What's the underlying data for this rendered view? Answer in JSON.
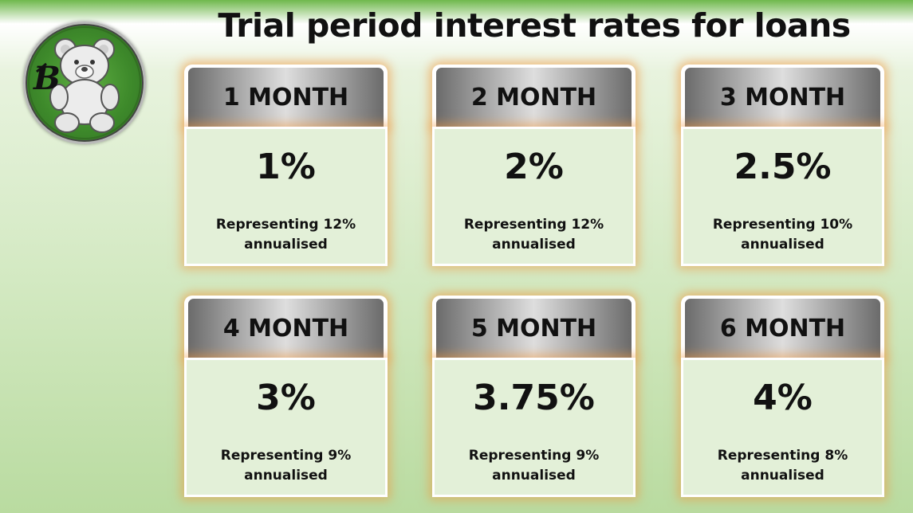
{
  "title": "Trial period interest rates for loans",
  "logo": {
    "icon": "teddy-bear-logo-icon",
    "letter": "B"
  },
  "cards": [
    {
      "period": "1 MONTH",
      "rate": "1%",
      "note_line1": "Representing 12%",
      "note_line2": "annualised"
    },
    {
      "period": "2 MONTH",
      "rate": "2%",
      "note_line1": "Representing 12%",
      "note_line2": "annualised"
    },
    {
      "period": "3 MONTH",
      "rate": "2.5%",
      "note_line1": "Representing 10%",
      "note_line2": "annualised"
    },
    {
      "period": "4 MONTH",
      "rate": "3%",
      "note_line1": "Representing 9%",
      "note_line2": "annualised"
    },
    {
      "period": "5 MONTH",
      "rate": "3.75%",
      "note_line1": "Representing 9%",
      "note_line2": "annualised"
    },
    {
      "period": "6 MONTH",
      "rate": "4%",
      "note_line1": "Representing 8%",
      "note_line2": "annualised"
    }
  ],
  "colors": {
    "card_glow": "#f0963c",
    "card_body": "#e3f0d8",
    "header_dark": "#6b6b6b",
    "header_light": "#dedede"
  }
}
